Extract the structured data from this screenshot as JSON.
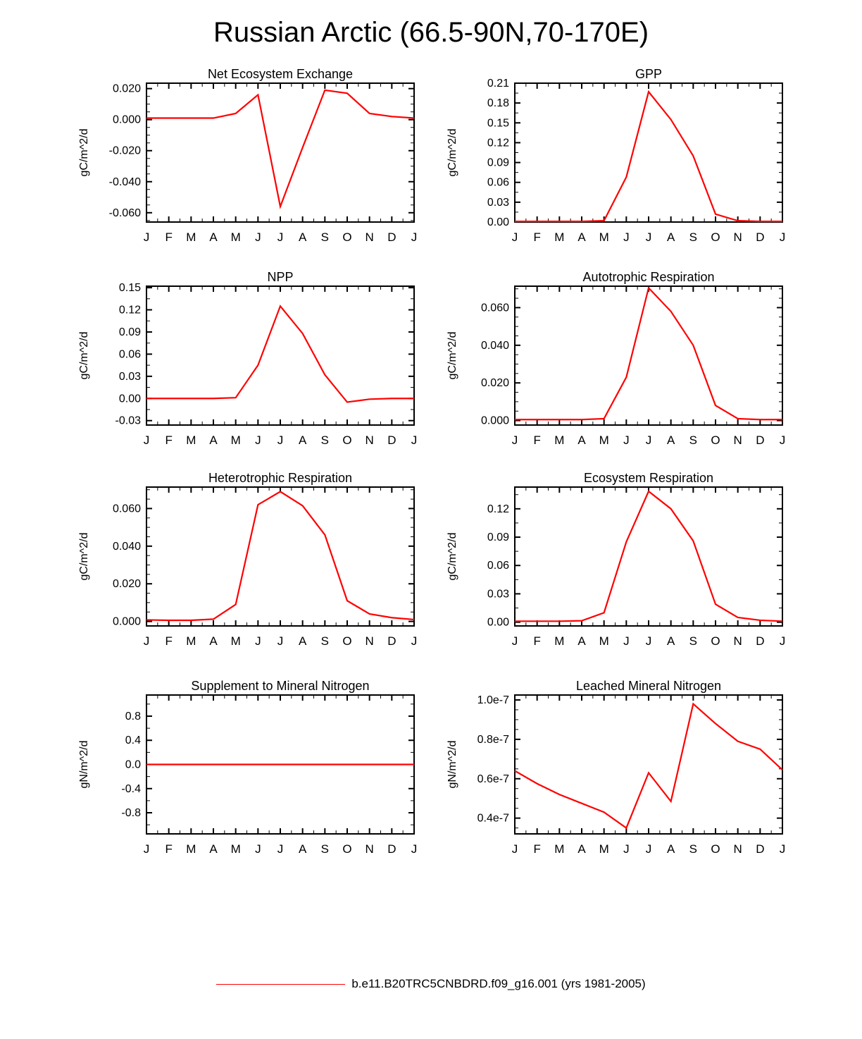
{
  "page": {
    "title": "Russian Arctic (66.5-90N,70-170E)",
    "background": "#ffffff"
  },
  "colors": {
    "series_line": "#ff0000",
    "axis": "#000000",
    "text": "#000000"
  },
  "legend": {
    "label": "b.e11.B20TRC5CNBDRD.f09_g16.001 (yrs 1981-2005)",
    "line_color": "#ff0000"
  },
  "chart_data": [
    {
      "type": "line",
      "title": "Net Ecosystem Exchange",
      "xlabel": "",
      "ylabel": "gC/m^2/d",
      "categories": [
        "J",
        "F",
        "M",
        "A",
        "M",
        "J",
        "J",
        "A",
        "S",
        "O",
        "N",
        "D",
        "J"
      ],
      "values": [
        0.001,
        0.001,
        0.001,
        0.001,
        0.004,
        0.016,
        -0.056,
        -0.018,
        0.019,
        0.017,
        0.004,
        0.002,
        0.001
      ],
      "ylim": [
        -0.066,
        0.0235
      ],
      "ytick_values": [
        -0.06,
        -0.04,
        -0.02,
        0.0,
        0.02
      ],
      "ytick_labels": [
        "-0.060",
        "-0.040",
        "-0.020",
        "0.000",
        "0.020"
      ],
      "y_minor_div": 4
    },
    {
      "type": "line",
      "title": "GPP",
      "xlabel": "",
      "ylabel": "gC/m^2/d",
      "categories": [
        "J",
        "F",
        "M",
        "A",
        "M",
        "J",
        "J",
        "A",
        "S",
        "O",
        "N",
        "D",
        "J"
      ],
      "values": [
        0.001,
        0.001,
        0.001,
        0.001,
        0.002,
        0.068,
        0.197,
        0.155,
        0.1,
        0.012,
        0.002,
        0.001,
        0.001
      ],
      "ylim": [
        0.0,
        0.21
      ],
      "ytick_values": [
        0.0,
        0.03,
        0.06,
        0.09,
        0.12,
        0.15,
        0.18,
        0.21
      ],
      "ytick_labels": [
        "0.00",
        "0.03",
        "0.06",
        "0.09",
        "0.12",
        "0.15",
        "0.18",
        "0.21"
      ],
      "y_minor_div": 2
    },
    {
      "type": "line",
      "title": "NPP",
      "xlabel": "",
      "ylabel": "gC/m^2/d",
      "categories": [
        "J",
        "F",
        "M",
        "A",
        "M",
        "J",
        "J",
        "A",
        "S",
        "O",
        "N",
        "D",
        "J"
      ],
      "values": [
        0.0,
        0.0,
        0.0,
        0.0,
        0.001,
        0.045,
        0.125,
        0.088,
        0.032,
        -0.005,
        -0.001,
        0.0,
        0.0
      ],
      "ylim": [
        -0.036,
        0.152
      ],
      "ytick_values": [
        -0.03,
        0.0,
        0.03,
        0.06,
        0.09,
        0.12,
        0.15
      ],
      "ytick_labels": [
        "-0.03",
        "0.00",
        "0.03",
        "0.06",
        "0.09",
        "0.12",
        "0.15"
      ],
      "y_minor_div": 2
    },
    {
      "type": "line",
      "title": "Autotrophic Respiration",
      "xlabel": "",
      "ylabel": "gC/m^2/d",
      "categories": [
        "J",
        "F",
        "M",
        "A",
        "M",
        "J",
        "J",
        "A",
        "S",
        "O",
        "N",
        "D",
        "J"
      ],
      "values": [
        0.0005,
        0.0005,
        0.0005,
        0.0005,
        0.001,
        0.023,
        0.0705,
        0.058,
        0.04,
        0.008,
        0.001,
        0.0005,
        0.0005
      ],
      "ylim": [
        -0.0024,
        0.0714
      ],
      "ytick_values": [
        0.0,
        0.02,
        0.04,
        0.06
      ],
      "ytick_labels": [
        "0.000",
        "0.020",
        "0.040",
        "0.060"
      ],
      "y_minor_div": 4
    },
    {
      "type": "line",
      "title": "Heterotrophic Respiration",
      "xlabel": "",
      "ylabel": "gC/m^2/d",
      "categories": [
        "J",
        "F",
        "M",
        "A",
        "M",
        "J",
        "J",
        "A",
        "S",
        "O",
        "N",
        "D",
        "J"
      ],
      "values": [
        0.0008,
        0.0006,
        0.0006,
        0.0012,
        0.009,
        0.062,
        0.069,
        0.0615,
        0.046,
        0.011,
        0.004,
        0.002,
        0.001
      ],
      "ylim": [
        -0.0024,
        0.0714
      ],
      "ytick_values": [
        0.0,
        0.02,
        0.04,
        0.06
      ],
      "ytick_labels": [
        "0.000",
        "0.020",
        "0.040",
        "0.060"
      ],
      "y_minor_div": 4
    },
    {
      "type": "line",
      "title": "Ecosystem Respiration",
      "xlabel": "",
      "ylabel": "gC/m^2/d",
      "categories": [
        "J",
        "F",
        "M",
        "A",
        "M",
        "J",
        "J",
        "A",
        "S",
        "O",
        "N",
        "D",
        "J"
      ],
      "values": [
        0.001,
        0.001,
        0.001,
        0.0015,
        0.01,
        0.085,
        0.1385,
        0.12,
        0.086,
        0.019,
        0.005,
        0.002,
        0.001
      ],
      "ylim": [
        -0.004,
        0.143
      ],
      "ytick_values": [
        0.0,
        0.03,
        0.06,
        0.09,
        0.12
      ],
      "ytick_labels": [
        "0.00",
        "0.03",
        "0.06",
        "0.09",
        "0.12"
      ],
      "y_minor_div": 2
    },
    {
      "type": "line",
      "title": "Supplement to Mineral Nitrogen",
      "xlabel": "",
      "ylabel": "gN/m^2/d",
      "categories": [
        "J",
        "F",
        "M",
        "A",
        "M",
        "J",
        "J",
        "A",
        "S",
        "O",
        "N",
        "D",
        "J"
      ],
      "values": [
        0.0,
        0.0,
        0.0,
        0.0,
        0.0,
        0.0,
        0.0,
        0.0,
        0.0,
        0.0,
        0.0,
        0.0,
        0.0
      ],
      "ylim": [
        -1.15,
        1.15
      ],
      "ytick_values": [
        -0.8,
        -0.4,
        0.0,
        0.4,
        0.8
      ],
      "ytick_labels": [
        "-0.8",
        "-0.4",
        "0.0",
        "0.4",
        "0.8"
      ],
      "y_minor_div": 2
    },
    {
      "type": "line",
      "title": "Leached Mineral Nitrogen",
      "xlabel": "",
      "ylabel": "gN/m^2/d",
      "categories": [
        "J",
        "F",
        "M",
        "A",
        "M",
        "J",
        "J",
        "A",
        "S",
        "O",
        "N",
        "D",
        "J"
      ],
      "values": [
        6.4e-08,
        5.75e-08,
        5.2e-08,
        4.75e-08,
        4.3e-08,
        3.5e-08,
        6.3e-08,
        4.85e-08,
        9.8e-08,
        8.8e-08,
        7.9e-08,
        7.5e-08,
        6.45e-08
      ],
      "ylim": [
        3.2e-08,
        1.025e-07
      ],
      "ytick_values": [
        4e-08,
        6e-08,
        8e-08,
        1e-07
      ],
      "ytick_labels": [
        "0.4e-7",
        "0.6e-7",
        "0.8e-7",
        "1.0e-7"
      ],
      "y_minor_div": 4
    }
  ]
}
